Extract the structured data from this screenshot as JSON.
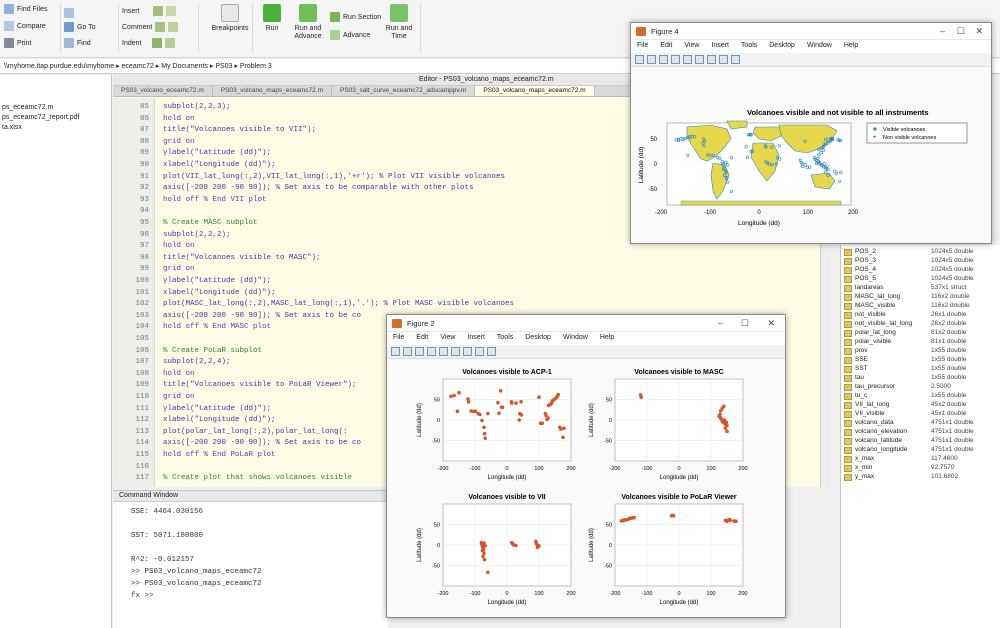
{
  "toolstrip": {
    "left_small": [
      {
        "label": "Find Files"
      },
      {
        "label": "Compare"
      },
      {
        "label": "Print"
      }
    ],
    "nav_small": [
      {
        "label": "Go To"
      },
      {
        "label": "Find"
      }
    ],
    "edit_small": [
      {
        "label": "Insert"
      },
      {
        "label": "Comment"
      },
      {
        "label": "Indent"
      }
    ],
    "breakpoints": "Breakpoints",
    "run": "Run",
    "run_and_advance": "Run and Advance",
    "run_section": "Run Section",
    "advance": "Advance",
    "run_and_time": "Run and Time"
  },
  "address": {
    "parts": [
      "\\\\myhome.itap.purdue.edu\\myhome",
      "eceamc72",
      "My Documents",
      "PS03",
      "Problem 3"
    ]
  },
  "file_panel": {
    "items": [
      "ps_eceamc72.m",
      "ps_eceamc72_report.pdf",
      "ta.xlsx"
    ]
  },
  "editor": {
    "header": "Editor - PS03_volcano_maps_eceamc72.m",
    "tabs": [
      "PS03_volcano_eceamc72.m",
      "PS03_volcano_maps_eceamc72.m",
      "PS03_salt_curve_eceamc72_adscamppv.m",
      "PS03_volcano_maps_eceamc72.m"
    ],
    "lines": [
      {
        "n": "85",
        "t": "subplot(2,2,3);",
        "k": "code"
      },
      {
        "n": "86",
        "t": "hold on",
        "k": "kw"
      },
      {
        "n": "87",
        "t": "title(\"Volcanoes visible to VII\");",
        "k": "code"
      },
      {
        "n": "88",
        "t": "grid on",
        "k": "kw"
      },
      {
        "n": "89",
        "t": "ylabel(\"Latitude (dd)\");",
        "k": "code"
      },
      {
        "n": "90",
        "t": "xlabel(\"Longitude (dd)\");",
        "k": "code"
      },
      {
        "n": "91",
        "t": "plot(VII_lat_long(:,2),VII_lat_long(:,1),'+r'); % Plot VII visible volcanoes",
        "k": "code"
      },
      {
        "n": "92",
        "t": "axis([-200 200 -90 90]); % Set axis to be comparable with other plots",
        "k": "code"
      },
      {
        "n": "93",
        "t": "hold off % End VII plot",
        "k": "kw"
      },
      {
        "n": "94",
        "t": "",
        "k": "code"
      },
      {
        "n": "95",
        "t": "% Create MASC subplot",
        "k": "cm"
      },
      {
        "n": "96",
        "t": "subplot(2,2,2);",
        "k": "code"
      },
      {
        "n": "97",
        "t": "hold on",
        "k": "kw"
      },
      {
        "n": "98",
        "t": "title(\"Volcanoes visible to MASC\");",
        "k": "code"
      },
      {
        "n": "99",
        "t": "grid on",
        "k": "kw"
      },
      {
        "n": "100",
        "t": "ylabel(\"Latitude (dd)\");",
        "k": "code"
      },
      {
        "n": "101",
        "t": "xlabel(\"Longitude (dd)\");",
        "k": "code"
      },
      {
        "n": "102",
        "t": "plot(MASC_lat_long(:,2),MASC_lat_long(:,1),'.'); % Plot MASC visible volcanoes",
        "k": "code"
      },
      {
        "n": "103",
        "t": "axis([-200 200 -90 90]); % Set axis to be co",
        "k": "code"
      },
      {
        "n": "104",
        "t": "hold off % End MASC plot",
        "k": "kw"
      },
      {
        "n": "105",
        "t": "",
        "k": "code"
      },
      {
        "n": "106",
        "t": "% Create PoLaR subplot",
        "k": "cm"
      },
      {
        "n": "107",
        "t": "subplot(2,2,4);",
        "k": "code"
      },
      {
        "n": "108",
        "t": "hold on",
        "k": "kw"
      },
      {
        "n": "109",
        "t": "title(\"Volcanoes visible to PoLaR Viewer\");",
        "k": "code"
      },
      {
        "n": "110",
        "t": "grid on",
        "k": "kw"
      },
      {
        "n": "111",
        "t": "ylabel(\"Latitude (dd)\");",
        "k": "code"
      },
      {
        "n": "112",
        "t": "xlabel(\"Longitude (dd)\");",
        "k": "code"
      },
      {
        "n": "113",
        "t": "plot(polar_lat_long(:,2),polar_lat_long(:",
        "k": "code"
      },
      {
        "n": "114",
        "t": "axis([-200 200 -90 90]); % Set axis to be co",
        "k": "code"
      },
      {
        "n": "115",
        "t": "hold off % End PoLaR plot",
        "k": "kw"
      },
      {
        "n": "116",
        "t": "",
        "k": "code"
      },
      {
        "n": "117",
        "t": "% Create plot that shows volcanoes visible",
        "k": "cm"
      }
    ]
  },
  "command_window": {
    "title": "Command Window",
    "lines": [
      "SSE: 4464.030156",
      "",
      "SST: 5071.180800",
      "",
      "R^2: -0.012157",
      ">> PS03_volcano_maps_eceamc72",
      ">> PS03_volcano_maps_eceamc72",
      "fx >>"
    ]
  },
  "workspace": {
    "rows": [
      {
        "name": "POS_2",
        "value": "1024x5 double"
      },
      {
        "name": "POS_3",
        "value": "1024x5 double"
      },
      {
        "name": "POS_4",
        "value": "1024x5 double"
      },
      {
        "name": "POS_5",
        "value": "1024x5 double"
      },
      {
        "name": "landareas",
        "value": "537x1 struct"
      },
      {
        "name": "MASC_lat_long",
        "value": "116x2 double"
      },
      {
        "name": "MASC_visible",
        "value": "116x2 double"
      },
      {
        "name": "not_visible",
        "value": "26x1 double"
      },
      {
        "name": "not_visible_lat_long",
        "value": "26x2 double"
      },
      {
        "name": "polar_lat_long",
        "value": "81x2 double"
      },
      {
        "name": "polar_visible",
        "value": "81x1 double"
      },
      {
        "name": "prov",
        "value": "1x55 double"
      },
      {
        "name": "SSE",
        "value": "1x55 double"
      },
      {
        "name": "SST",
        "value": "1x55 double"
      },
      {
        "name": "tau",
        "value": "1x55 double"
      },
      {
        "name": "tau_precursor",
        "value": "2.5000"
      },
      {
        "name": "tu_c",
        "value": "1x55 double"
      },
      {
        "name": "VII_lat_long",
        "value": "45x2 double"
      },
      {
        "name": "VII_visible",
        "value": "45x1 double"
      },
      {
        "name": "volcano_data",
        "value": "4751x1 double"
      },
      {
        "name": "volcano_elevation",
        "value": "4751x1 double"
      },
      {
        "name": "volcano_latitude",
        "value": "4751x1 double"
      },
      {
        "name": "volcano_longitude",
        "value": "4751x1 double"
      },
      {
        "name": "x_max",
        "value": "117.4600"
      },
      {
        "name": "x_min",
        "value": "92.7570"
      },
      {
        "name": "y_max",
        "value": "101.6802"
      }
    ]
  },
  "figure4": {
    "title": "Figure 4",
    "menu": [
      "File",
      "Edit",
      "View",
      "Insert",
      "Tools",
      "Desktop",
      "Window",
      "Help"
    ],
    "chart_title": "Volcanoes visible and not visible to all instruments",
    "xlabel": "Longitude (dd)",
    "ylabel": "Latitude (dd)",
    "ticks_x": [
      "-200",
      "-100",
      "0",
      "100",
      "200"
    ],
    "ticks_y": [
      "50",
      "0",
      "-50"
    ],
    "legend": [
      "Visible volcanoes",
      "Non visible volcanoes"
    ],
    "colors": {
      "land": "#e6d84a",
      "visible": "#2b86c9",
      "not_visible": "#222222",
      "ocean": "#ffffff"
    }
  },
  "figure2": {
    "title": "Figure 2",
    "menu": [
      "File",
      "Edit",
      "View",
      "Insert",
      "Tools",
      "Desktop",
      "Window",
      "Help"
    ]
  },
  "chart_data": [
    {
      "type": "scatter",
      "title": "Volcanoes visible to ACP-1",
      "xlabel": "Longitude (dd)",
      "ylabel": "Latitude (dd)",
      "xlim": [
        -200,
        200
      ],
      "ylim": [
        -90,
        90
      ],
      "x_ticks": [
        "-200",
        "-100",
        "0",
        "100",
        "200"
      ],
      "y_ticks": [
        "50",
        "0",
        "-50"
      ],
      "color": "#d4572a",
      "points": [
        [
          -155,
          19
        ],
        [
          -150,
          60
        ],
        [
          -122,
          46
        ],
        [
          -120,
          40
        ],
        [
          -112,
          20
        ],
        [
          -105,
          19
        ],
        [
          -99,
          19
        ],
        [
          -90,
          14
        ],
        [
          -85,
          12
        ],
        [
          -78,
          -1
        ],
        [
          -72,
          -16
        ],
        [
          -70,
          -30
        ],
        [
          -68,
          -40
        ],
        [
          -60,
          14
        ],
        [
          -20,
          64
        ],
        [
          -28,
          38
        ],
        [
          14,
          40
        ],
        [
          15,
          37
        ],
        [
          28,
          37
        ],
        [
          38,
          0
        ],
        [
          40,
          14
        ],
        [
          44,
          40
        ],
        [
          45,
          11
        ],
        [
          100,
          50
        ],
        [
          105,
          -7
        ],
        [
          110,
          -7
        ],
        [
          120,
          14
        ],
        [
          122,
          10
        ],
        [
          125,
          1
        ],
        [
          128,
          4
        ],
        [
          130,
          32
        ],
        [
          135,
          34
        ],
        [
          138,
          36
        ],
        [
          140,
          38
        ],
        [
          142,
          42
        ],
        [
          145,
          44
        ],
        [
          150,
          46
        ],
        [
          155,
          50
        ],
        [
          158,
          53
        ],
        [
          160,
          56
        ],
        [
          165,
          -16
        ],
        [
          168,
          -20
        ],
        [
          175,
          -38
        ],
        [
          178,
          -18
        ],
        [
          -175,
          52
        ],
        [
          -165,
          54
        ],
        [
          -25,
          15
        ],
        [
          -17,
          28
        ],
        [
          -14,
          28
        ]
      ]
    },
    {
      "type": "scatter",
      "title": "Volcanoes visible to MASC",
      "xlabel": "Longitude (dd)",
      "ylabel": "Latitude (dd)",
      "xlim": [
        -200,
        200
      ],
      "ylim": [
        -90,
        90
      ],
      "x_ticks": [
        "-200",
        "-100",
        "0",
        "100",
        "200"
      ],
      "y_ticks": [
        "50",
        "0",
        "-50"
      ],
      "color": "#d4572a",
      "points": [
        [
          -120,
          55
        ],
        [
          -118,
          50
        ],
        [
          130,
          5
        ],
        [
          132,
          2
        ],
        [
          135,
          -1
        ],
        [
          137,
          -3
        ],
        [
          140,
          -6
        ],
        [
          142,
          0
        ],
        [
          144,
          -8
        ],
        [
          146,
          -10
        ],
        [
          148,
          -5
        ],
        [
          150,
          -12
        ],
        [
          125,
          8
        ],
        [
          128,
          12
        ],
        [
          130,
          20
        ],
        [
          135,
          25
        ],
        [
          140,
          30
        ],
        [
          145,
          -18
        ],
        [
          150,
          -25
        ]
      ]
    },
    {
      "type": "scatter",
      "title": "Volcanoes visible to VII",
      "xlabel": "Longitude (dd)",
      "ylabel": "Latitude (dd)",
      "xlim": [
        -200,
        200
      ],
      "ylim": [
        -90,
        90
      ],
      "x_ticks": [
        "-200",
        "-100",
        "0",
        "100",
        "200"
      ],
      "y_ticks": [
        "50",
        "0",
        "-50"
      ],
      "color": "#d4572a",
      "points": [
        [
          -80,
          5
        ],
        [
          -78,
          0
        ],
        [
          -76,
          -5
        ],
        [
          -74,
          -10
        ],
        [
          -72,
          -18
        ],
        [
          -75,
          -25
        ],
        [
          -70,
          -32
        ],
        [
          -72,
          4
        ],
        [
          -68,
          -2
        ],
        [
          -77,
          -12
        ],
        [
          15,
          5
        ],
        [
          18,
          2
        ],
        [
          22,
          0
        ],
        [
          28,
          -1
        ],
        [
          90,
          8
        ],
        [
          92,
          3
        ],
        [
          95,
          0
        ],
        [
          100,
          -2
        ],
        [
          95,
          -5
        ],
        [
          -60,
          -60
        ]
      ]
    },
    {
      "type": "scatter",
      "title": "Volcanoes visible to PoLaR Viewer",
      "xlabel": "Longitude (dd)",
      "ylabel": "Latitude (dd)",
      "xlim": [
        -200,
        200
      ],
      "ylim": [
        -90,
        90
      ],
      "x_ticks": [
        "-200",
        "-100",
        "0",
        "100",
        "200"
      ],
      "y_ticks": [
        "50",
        "0",
        "-50"
      ],
      "color": "#d4572a",
      "points": [
        [
          -175,
          54
        ],
        [
          -170,
          55
        ],
        [
          -165,
          55
        ],
        [
          -160,
          56
        ],
        [
          -155,
          58
        ],
        [
          -150,
          59
        ],
        [
          -145,
          60
        ],
        [
          -140,
          60
        ],
        [
          -180,
          53
        ],
        [
          -23,
          64
        ],
        [
          -19,
          65
        ],
        [
          -17,
          64
        ],
        [
          145,
          54
        ],
        [
          150,
          52
        ],
        [
          155,
          55
        ],
        [
          158,
          56
        ],
        [
          160,
          54
        ],
        [
          175,
          52
        ],
        [
          178,
          52
        ],
        [
          172,
          53
        ]
      ]
    }
  ]
}
